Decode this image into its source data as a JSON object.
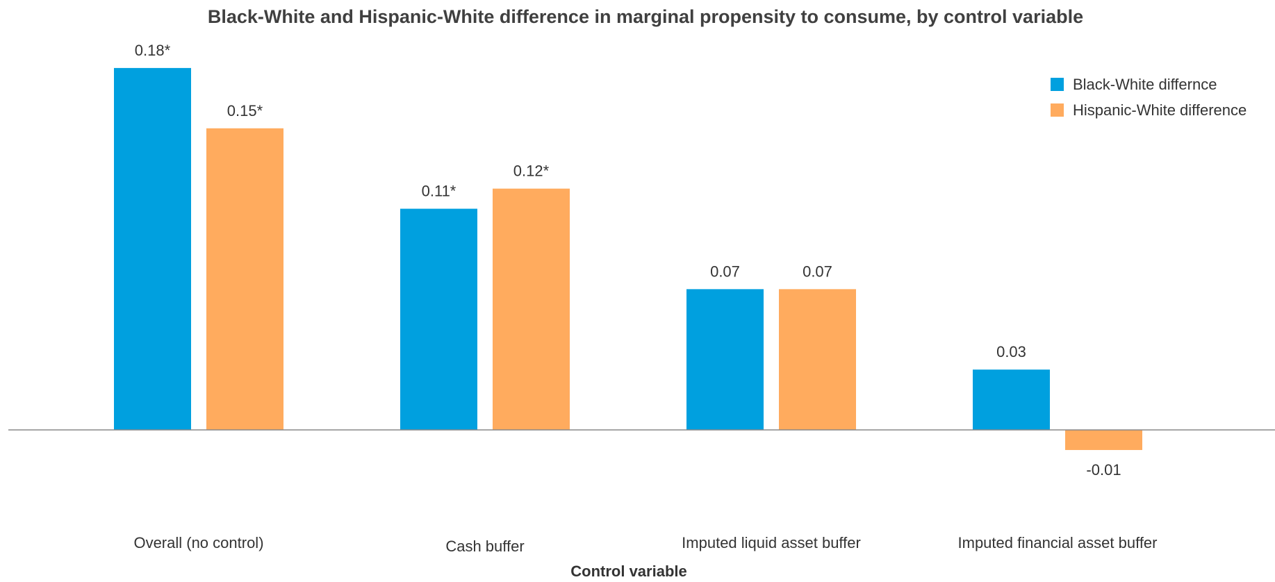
{
  "chart_data": {
    "type": "bar",
    "title": "Black-White and Hispanic-White difference in marginal propensity to consume, by control variable",
    "xlabel": "Control variable",
    "ylabel": "",
    "categories": [
      "Overall (no control)",
      "Cash buffer",
      "Imputed liquid asset buffer",
      "Imputed financial asset buffer"
    ],
    "series": [
      {
        "name": "Black-White differnce",
        "color": "#00A0DF",
        "values": [
          0.18,
          0.11,
          0.07,
          0.03
        ],
        "labels": [
          "0.18*",
          "0.11*",
          "0.07",
          "0.03"
        ]
      },
      {
        "name": "Hispanic-White difference",
        "color": "#FFAB5E",
        "values": [
          0.15,
          0.12,
          0.07,
          -0.01
        ],
        "labels": [
          "0.15*",
          "0.12*",
          "0.07",
          "-0.01"
        ]
      }
    ],
    "ylim": [
      -0.03,
      0.19
    ],
    "grid": false,
    "legend_position": "top-right",
    "zero_line_color": "#888888"
  }
}
